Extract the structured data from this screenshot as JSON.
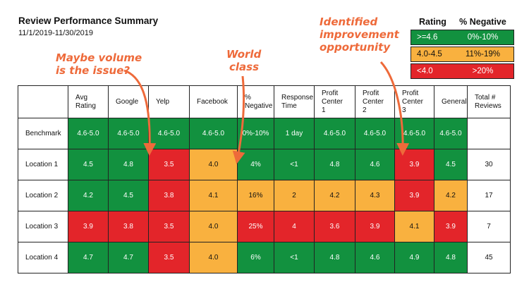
{
  "header": {
    "title": "Review Performance Summary",
    "date_range": "11/1/2019-11/30/2019"
  },
  "legend": {
    "rating_label": "Rating",
    "negative_label": "% Negative",
    "rows": [
      {
        "rating": ">=4.6",
        "negative": "0%-10%",
        "color": "#12913f"
      },
      {
        "rating": "4.0-4.5",
        "negative": "11%-19%",
        "color": "#f9b13f"
      },
      {
        "rating": "<4.0",
        "negative": ">20%",
        "color": "#e3252a"
      }
    ]
  },
  "annotations": {
    "volume_line1": "Maybe volume",
    "volume_line2": "is the issue?",
    "world_line1": "World",
    "world_line2": "class",
    "improve_line1": "Identified",
    "improve_line2": "improvement",
    "improve_line3": "opportunity",
    "color": "#ee6a3a"
  },
  "table": {
    "headers": [
      {
        "line1": "Avg",
        "line2": "Rating",
        "line3": ""
      },
      {
        "line1": "Google",
        "line2": "",
        "line3": ""
      },
      {
        "line1": "Yelp",
        "line2": "",
        "line3": ""
      },
      {
        "line1": "Facebook",
        "line2": "",
        "line3": ""
      },
      {
        "line1": "%",
        "line2": "Negative",
        "line3": ""
      },
      {
        "line1": "Response",
        "line2": "Time",
        "line3": ""
      },
      {
        "line1": "Profit",
        "line2": "Center",
        "line3": "1"
      },
      {
        "line1": "Profit",
        "line2": "Center",
        "line3": "2"
      },
      {
        "line1": "Profit",
        "line2": "Center",
        "line3": "3"
      },
      {
        "line1": "General",
        "line2": "",
        "line3": ""
      },
      {
        "line1": "Total #",
        "line2": "Reviews",
        "line3": ""
      }
    ],
    "rows": [
      {
        "label": "Benchmark",
        "cells": [
          {
            "v": "4.6-5.0",
            "c": "g"
          },
          {
            "v": "4.6-5.0",
            "c": "g"
          },
          {
            "v": "4.6-5.0",
            "c": "g"
          },
          {
            "v": "4.6-5.0",
            "c": "g"
          },
          {
            "v": "0%-10%",
            "c": "g"
          },
          {
            "v": "1 day",
            "c": "g"
          },
          {
            "v": "4.6-5.0",
            "c": "g"
          },
          {
            "v": "4.6-5.0",
            "c": "g"
          },
          {
            "v": "4.6-5.0",
            "c": "g"
          },
          {
            "v": "4.6-5.0",
            "c": "g"
          },
          {
            "v": "",
            "c": "w"
          }
        ]
      },
      {
        "label": "Location 1",
        "cells": [
          {
            "v": "4.5",
            "c": "g"
          },
          {
            "v": "4.8",
            "c": "g"
          },
          {
            "v": "3.5",
            "c": "r"
          },
          {
            "v": "4.0",
            "c": "o"
          },
          {
            "v": "4%",
            "c": "g"
          },
          {
            "v": "<1",
            "c": "g"
          },
          {
            "v": "4.8",
            "c": "g"
          },
          {
            "v": "4.6",
            "c": "g"
          },
          {
            "v": "3.9",
            "c": "r"
          },
          {
            "v": "4.5",
            "c": "g"
          },
          {
            "v": "30",
            "c": "w"
          }
        ]
      },
      {
        "label": "Location 2",
        "cells": [
          {
            "v": "4.2",
            "c": "g"
          },
          {
            "v": "4.5",
            "c": "g"
          },
          {
            "v": "3.8",
            "c": "r"
          },
          {
            "v": "4.1",
            "c": "o"
          },
          {
            "v": "16%",
            "c": "o"
          },
          {
            "v": "2",
            "c": "o"
          },
          {
            "v": "4.2",
            "c": "o"
          },
          {
            "v": "4.3",
            "c": "o"
          },
          {
            "v": "3.9",
            "c": "r"
          },
          {
            "v": "4.2",
            "c": "o"
          },
          {
            "v": "17",
            "c": "w"
          }
        ]
      },
      {
        "label": "Location 3",
        "cells": [
          {
            "v": "3.9",
            "c": "r"
          },
          {
            "v": "3.8",
            "c": "r"
          },
          {
            "v": "3.5",
            "c": "r"
          },
          {
            "v": "4.0",
            "c": "o"
          },
          {
            "v": "25%",
            "c": "r"
          },
          {
            "v": "4",
            "c": "r"
          },
          {
            "v": "3.6",
            "c": "r"
          },
          {
            "v": "3.9",
            "c": "r"
          },
          {
            "v": "4.1",
            "c": "o"
          },
          {
            "v": "3.9",
            "c": "r"
          },
          {
            "v": "7",
            "c": "w"
          }
        ]
      },
      {
        "label": "Location 4",
        "cells": [
          {
            "v": "4.7",
            "c": "g"
          },
          {
            "v": "4.7",
            "c": "g"
          },
          {
            "v": "3.5",
            "c": "r"
          },
          {
            "v": "4.0",
            "c": "o"
          },
          {
            "v": "6%",
            "c": "g"
          },
          {
            "v": "<1",
            "c": "g"
          },
          {
            "v": "4.8",
            "c": "g"
          },
          {
            "v": "4.6",
            "c": "g"
          },
          {
            "v": "4.9",
            "c": "g"
          },
          {
            "v": "4.8",
            "c": "g"
          },
          {
            "v": "45",
            "c": "w"
          }
        ]
      }
    ]
  }
}
